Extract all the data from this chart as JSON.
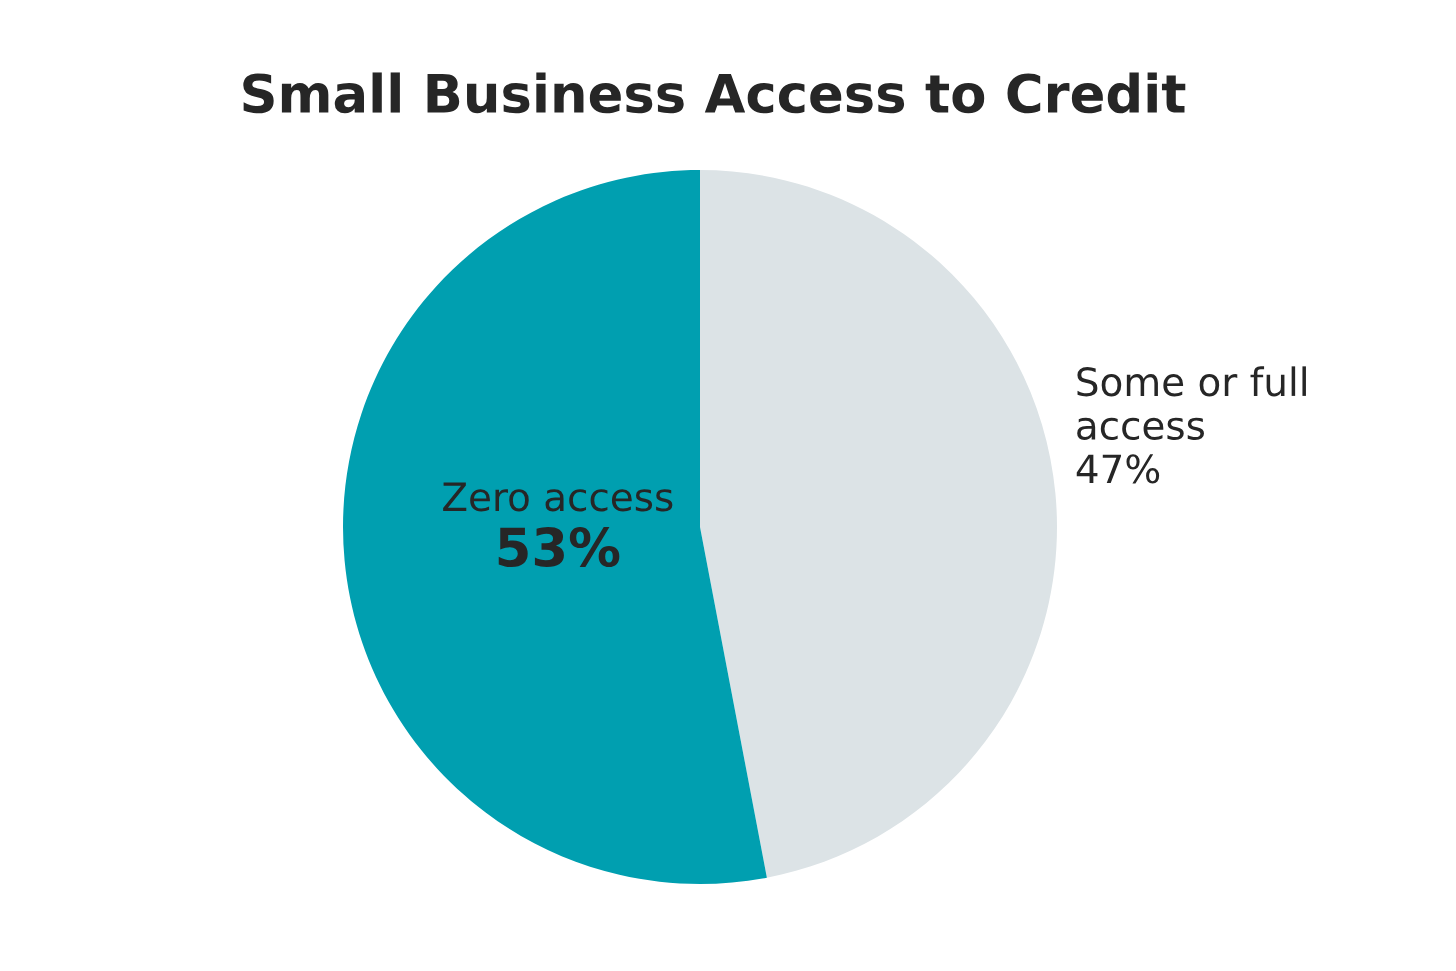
{
  "chart_data": {
    "type": "pie",
    "title": "Small Business Access to Credit",
    "categories": [
      "Some or full\naccess",
      "Zero access"
    ],
    "values": [
      47,
      53
    ],
    "colors": [
      "#dce3e6",
      "#009fb0"
    ],
    "value_labels": [
      "47%",
      "53%"
    ]
  }
}
